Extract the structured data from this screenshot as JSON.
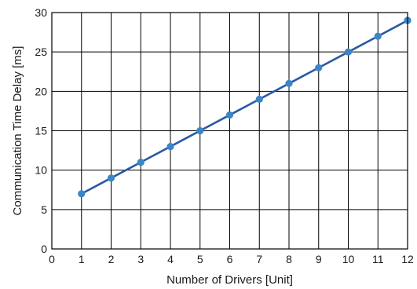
{
  "chart_data": {
    "type": "line",
    "title": "",
    "xlabel": "Number of Drivers [Unit]",
    "ylabel": "Communication Time Delay [ms]",
    "xlim": [
      0,
      12
    ],
    "ylim": [
      0,
      30
    ],
    "x_ticks": [
      0,
      1,
      2,
      3,
      4,
      5,
      6,
      7,
      8,
      9,
      10,
      11,
      12
    ],
    "y_ticks": [
      0,
      5,
      10,
      15,
      20,
      25,
      30
    ],
    "grid": true,
    "series": [
      {
        "x": [
          1,
          2,
          3,
          4,
          5,
          6,
          7,
          8,
          9,
          10,
          11,
          12
        ],
        "values": [
          7,
          9,
          11,
          13,
          15,
          17,
          19,
          21,
          23,
          25,
          27,
          29
        ],
        "color": "#2b59a3",
        "marker_color": "#3b86c6"
      }
    ]
  }
}
